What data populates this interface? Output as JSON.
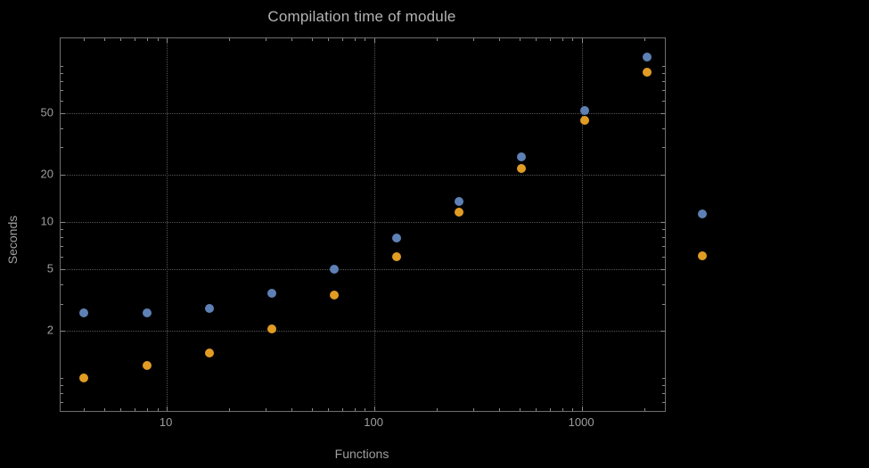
{
  "title": "Compilation time of module",
  "colors": {
    "background": "#000000",
    "frame": "#6e6e6e",
    "grid": "#565656",
    "text": "#9e9e9e",
    "series_blue": "#5e81b5",
    "series_orange": "#e19c24"
  },
  "chart_data": {
    "type": "scatter",
    "title": "Compilation time of module",
    "xlabel": "Functions",
    "ylabel": "Seconds",
    "x_scale": "log",
    "y_scale": "log",
    "grid": true,
    "x_log_range": [
      0.4885,
      3.3987
    ],
    "y_log_range": [
      -0.2114,
      2.1771
    ],
    "x_ticks": [
      {
        "value": 10,
        "label": "10"
      },
      {
        "value": 100,
        "label": "100"
      },
      {
        "value": 1000,
        "label": "1000"
      }
    ],
    "y_ticks": [
      {
        "value": 2,
        "label": "2"
      },
      {
        "value": 5,
        "label": "5"
      },
      {
        "value": 10,
        "label": "10"
      },
      {
        "value": 20,
        "label": "20"
      },
      {
        "value": 50,
        "label": "50"
      }
    ],
    "series": [
      {
        "name": "series-1-blue",
        "color": "#5e81b5",
        "points": [
          [
            4,
            2.6
          ],
          [
            8,
            2.6
          ],
          [
            16,
            2.8
          ],
          [
            32,
            3.5
          ],
          [
            64,
            5.0
          ],
          [
            128,
            7.9
          ],
          [
            256,
            13.5
          ],
          [
            512,
            26
          ],
          [
            1024,
            52
          ],
          [
            2048,
            114
          ]
        ]
      },
      {
        "name": "series-2-orange",
        "color": "#e19c24",
        "points": [
          [
            4,
            1.0
          ],
          [
            8,
            1.2
          ],
          [
            16,
            1.45
          ],
          [
            32,
            2.05
          ],
          [
            64,
            3.4
          ],
          [
            128,
            6.0
          ],
          [
            256,
            11.5
          ],
          [
            512,
            22
          ],
          [
            1024,
            45
          ],
          [
            2048,
            91
          ]
        ]
      }
    ],
    "legend_markers": [
      {
        "name": "legend-marker-series-1",
        "color": "#5e81b5"
      },
      {
        "name": "legend-marker-series-2",
        "color": "#e19c24"
      }
    ]
  }
}
